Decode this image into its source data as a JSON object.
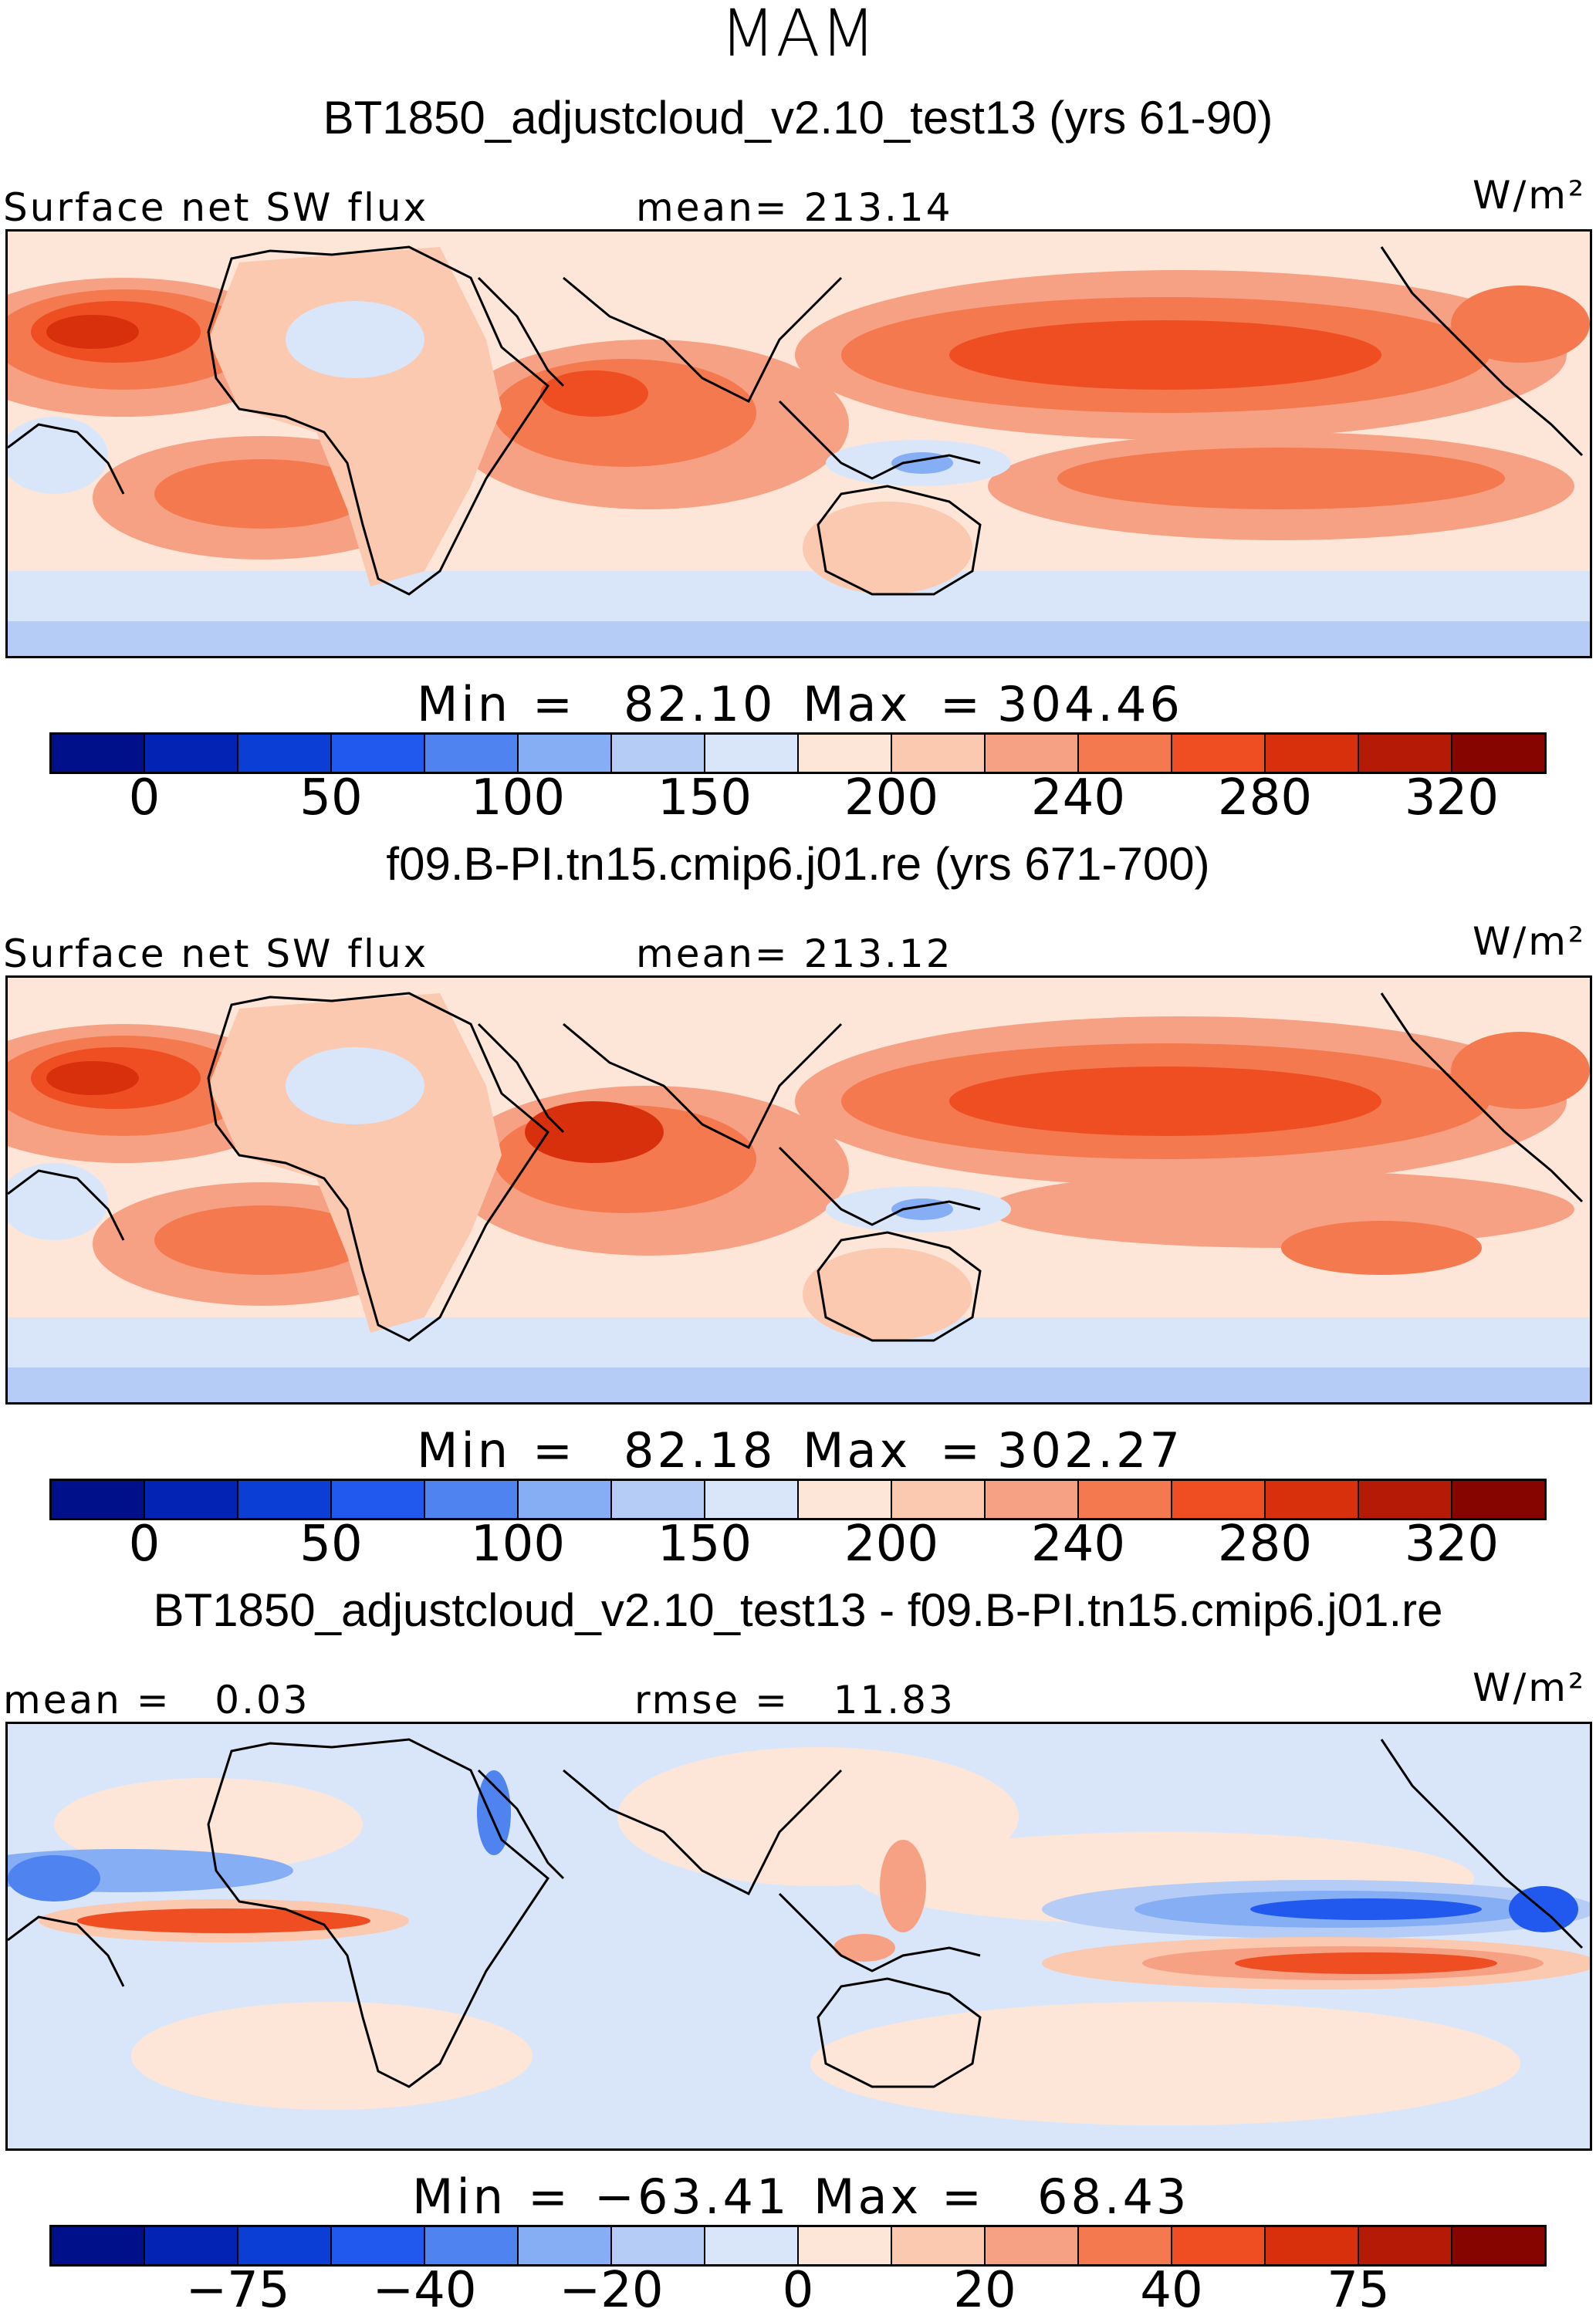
{
  "season": "MAM",
  "panels": [
    {
      "title": "BT1850_adjustcloud_v2.10_test13 (yrs 61-90)",
      "left_label": "Surface net SW flux",
      "center_label": "mean= 213.14",
      "units": "W/m²",
      "min_label": "Min",
      "min_value": "82.10",
      "max_label": "Max",
      "max_value": "304.46",
      "ticks": [
        "0",
        "50",
        "100",
        "150",
        "200",
        "240",
        "280",
        "320"
      ]
    },
    {
      "title": "f09.B-PI.tn15.cmip6.j01.re (yrs 671-700)",
      "left_label": "Surface net SW flux",
      "center_label": "mean= 213.12",
      "units": "W/m²",
      "min_label": "Min",
      "min_value": "82.18",
      "max_label": "Max",
      "max_value": "302.27",
      "ticks": [
        "0",
        "50",
        "100",
        "150",
        "200",
        "240",
        "280",
        "320"
      ]
    },
    {
      "title": "BT1850_adjustcloud_v2.10_test13 - f09.B-PI.tn15.cmip6.j01.re",
      "left_label": "mean =   0.03",
      "center_label": "rmse =   11.83",
      "units": "W/m²",
      "min_label": "Min",
      "min_value": "−63.41",
      "max_label": "Max",
      "max_value": "68.43",
      "ticks": [
        "−75",
        "−40",
        "−20",
        "0",
        "20",
        "40",
        "75"
      ]
    }
  ],
  "colors": {
    "palette": [
      "#000f8a",
      "#0323b4",
      "#0a3ed4",
      "#2159ee",
      "#4f83f0",
      "#86aef4",
      "#b5cdf6",
      "#d9e6fa",
      "#fde6d8",
      "#fbc8b0",
      "#f7a184",
      "#f4794f",
      "#ef4e22",
      "#d8300c",
      "#b51a06",
      "#870500"
    ],
    "coast": "#000000",
    "frame": "#000000"
  }
}
